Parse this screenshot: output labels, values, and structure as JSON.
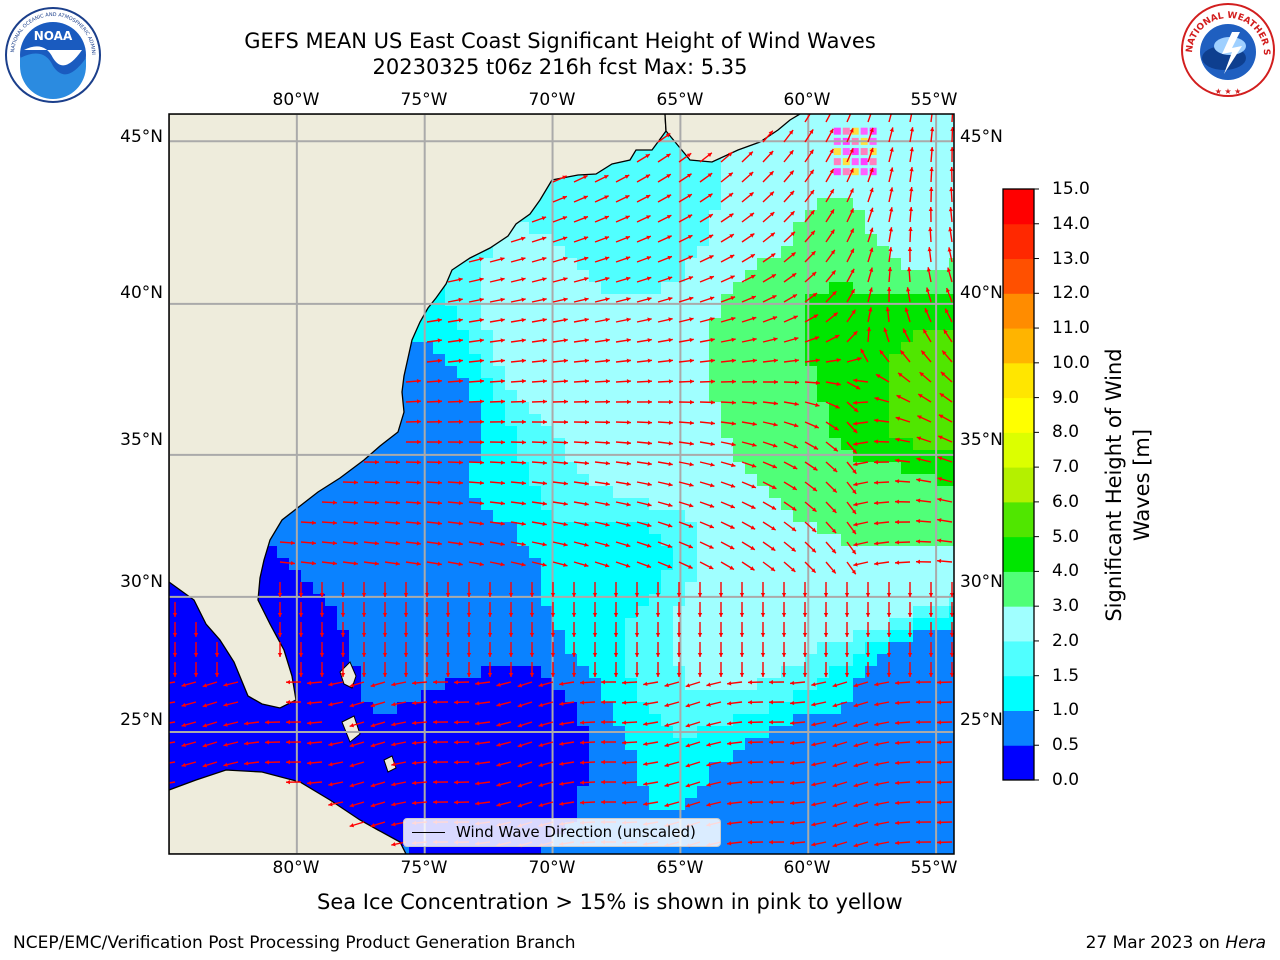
{
  "header": {
    "title_line1": "GEFS MEAN US East Coast Significant Height of Wind Waves",
    "title_line2": "20230325 t06z 216h fcst   Max: 5.35"
  },
  "logos": {
    "left": {
      "name": "NOAA",
      "ring_text": "NATIONAL OCEANIC AND ATMOSPHERIC ADMINISTRATION · U.S. DEPARTMENT OF COMMERCE"
    },
    "right": {
      "name": "NATIONAL WEATHER SERVICE"
    }
  },
  "map": {
    "lon_labels": [
      "80°W",
      "75°W",
      "70°W",
      "65°W",
      "60°W",
      "55°W"
    ],
    "lat_labels": [
      "45°N",
      "40°N",
      "35°N",
      "30°N",
      "25°N"
    ],
    "lon_values": [
      -80,
      -75,
      -70,
      -65,
      -60,
      -55
    ],
    "lat_values": [
      45,
      40,
      35,
      30,
      25
    ],
    "extent": {
      "lon_min": -85,
      "lon_max": -54.3,
      "lat_min": 20.3,
      "lat_max": 45.8
    },
    "gridlines": true,
    "land_color": "#eeecdc",
    "arrow_color": "#ff0000",
    "overlay": "Sea Ice Concentration > 15% shown in pink to yellow"
  },
  "legend": {
    "label": "Wind Wave Direction (unscaled)",
    "placement": "bottom-center"
  },
  "colorbar": {
    "label": "Significant Height of Wind Waves [m]",
    "label_line1": "Significant Height of Wind",
    "label_line2": "Waves [m]",
    "ticks": [
      "0.0",
      "0.5",
      "1.0",
      "1.5",
      "2.0",
      "3.0",
      "4.0",
      "5.0",
      "6.0",
      "7.0",
      "8.0",
      "9.0",
      "10.0",
      "11.0",
      "12.0",
      "13.0",
      "14.0",
      "15.0"
    ],
    "colors": [
      "#0000ff",
      "#0a82ff",
      "#00ffff",
      "#50ffff",
      "#a0ffff",
      "#50ff78",
      "#00e600",
      "#50e600",
      "#b4f000",
      "#dcff00",
      "#ffff00",
      "#ffe600",
      "#ffb400",
      "#ff8c00",
      "#ff5000",
      "#ff2800",
      "#ff0000"
    ]
  },
  "chart_data": {
    "type": "heatmap",
    "title": "GEFS MEAN US East Coast Significant Height of Wind Waves",
    "subtitle": "20230325 t06z 216h fcst   Max: 5.35",
    "variable": "Significant Height of Wind Waves [m]",
    "max": 5.35,
    "xlabel": "",
    "ylabel": "",
    "xlim": [
      -85,
      -54.3
    ],
    "ylim": [
      20.3,
      45.8
    ],
    "grid": true,
    "field_centers": [
      {
        "lon": -58.5,
        "lat": 38.0,
        "value": 4.6
      },
      {
        "lon": -55.5,
        "lat": 37.2,
        "value": 5.35
      },
      {
        "lon": -59.0,
        "lat": 40.5,
        "value": 4.0
      },
      {
        "lon": -61.0,
        "lat": 37.0,
        "value": 3.4
      },
      {
        "lon": -66.0,
        "lat": 35.0,
        "value": 2.4
      },
      {
        "lon": -70.5,
        "lat": 38.8,
        "value": 2.2
      },
      {
        "lon": -67.0,
        "lat": 31.5,
        "value": 1.4
      },
      {
        "lon": -73.0,
        "lat": 30.0,
        "value": 0.8
      },
      {
        "lon": -72.0,
        "lat": 25.0,
        "value": 0.3
      },
      {
        "lon": -82.0,
        "lat": 27.0,
        "value": 0.3
      },
      {
        "lon": -74.5,
        "lat": 36.5,
        "value": 0.9
      },
      {
        "lon": -66.5,
        "lat": 43.5,
        "value": 1.6
      },
      {
        "lon": -62.0,
        "lat": 44.0,
        "value": 2.0
      },
      {
        "lon": -56.0,
        "lat": 43.0,
        "value": 2.6
      },
      {
        "lon": -63.0,
        "lat": 29.5,
        "value": 2.2
      },
      {
        "lon": -60.0,
        "lat": 22.5,
        "value": 0.7
      },
      {
        "lon": -55.0,
        "lat": 26.5,
        "value": 0.6
      },
      {
        "lon": -57.0,
        "lat": 32.0,
        "value": 3.0
      }
    ],
    "sea_ice_lon_range": [
      -59,
      -57.5
    ],
    "sea_ice_lat_range": [
      44.2,
      45.5
    ],
    "legend": [
      "Wind Wave Direction (unscaled)"
    ]
  },
  "footer": {
    "caption": "Sea Ice Concentration > 15% is shown in pink to yellow",
    "left": "NCEP/EMC/Verification Post Processing Product Generation Branch",
    "date": "27 Mar 2023 on ",
    "host": "Hera"
  }
}
